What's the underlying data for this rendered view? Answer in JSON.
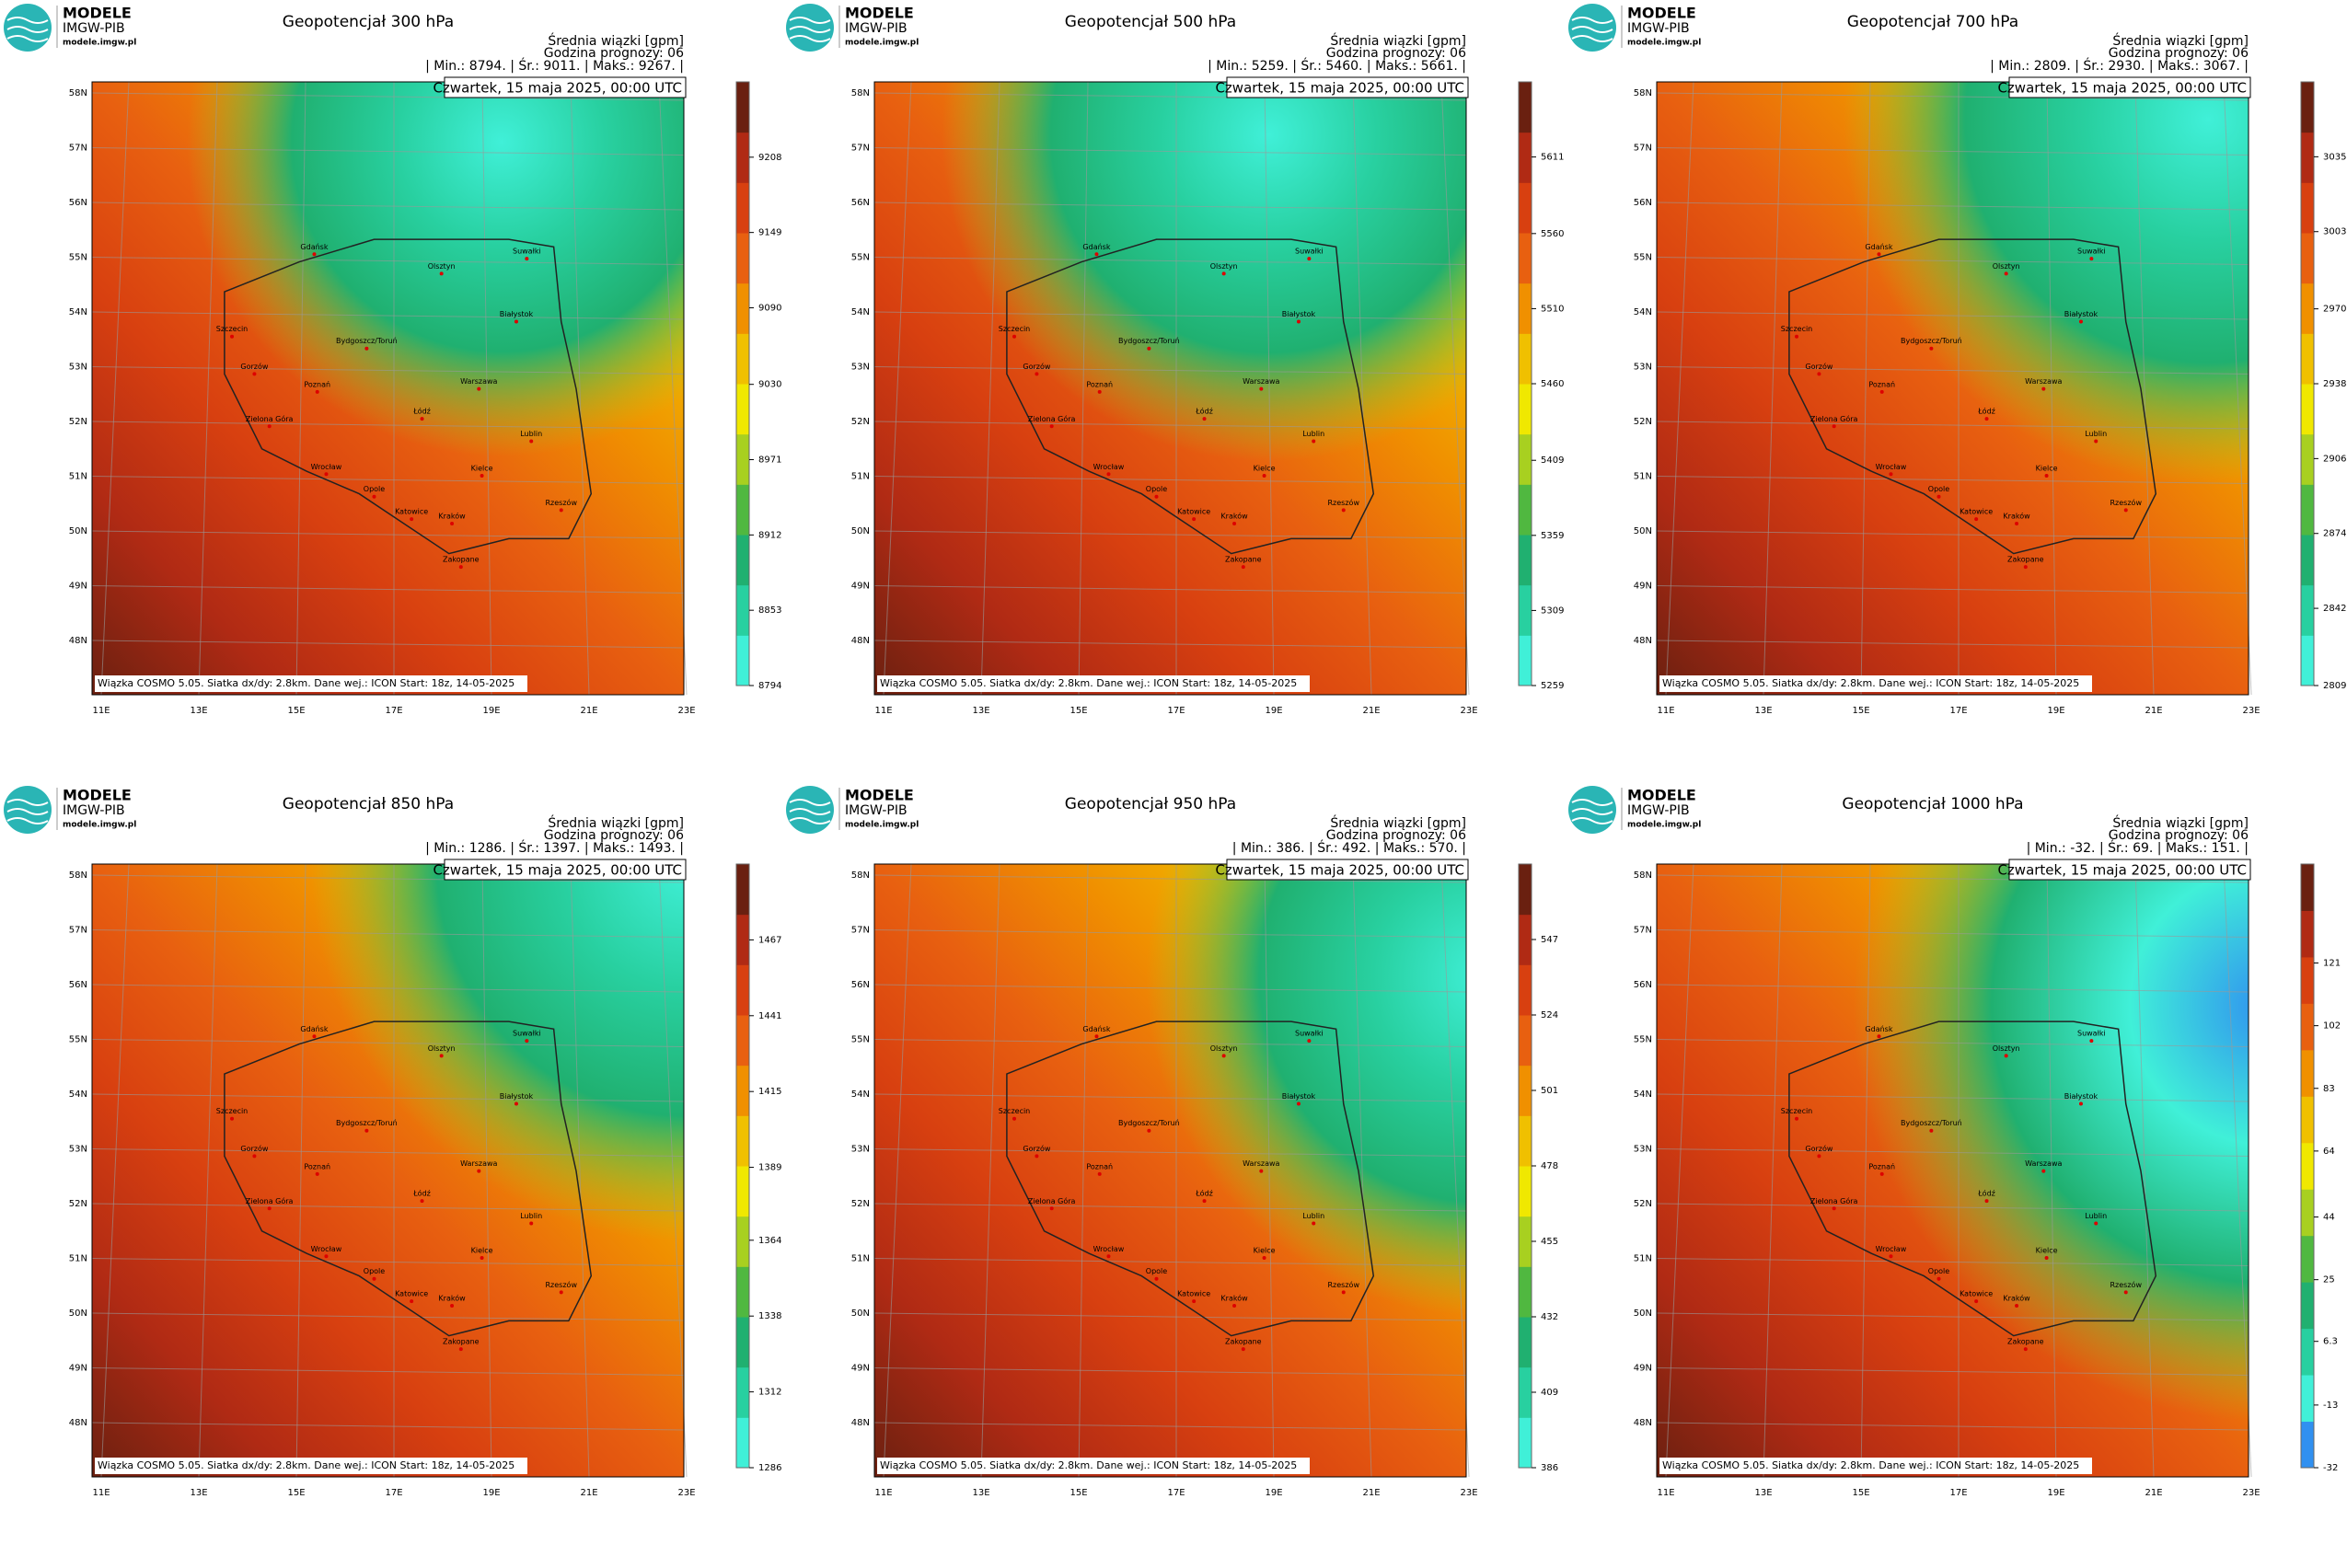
{
  "brand": {
    "name": "MODELE",
    "org": "IMGW-PIB",
    "url": "modele.imgw.pl"
  },
  "legend_title": "Średnia wiązki [gpm]",
  "forecast_hour": "Godzina prognozy: 06",
  "date": "Czwartek, 15 maja 2025, 00:00 UTC",
  "footer": "Wiązka  COSMO 5.05. Siatka dx/dy: 2.8km. Dane wej.: ICON Start: 18z, 14-05-2025",
  "lat_labels": [
    "58N",
    "57N",
    "56N",
    "55N",
    "54N",
    "53N",
    "52N",
    "51N",
    "50N",
    "49N",
    "48N"
  ],
  "lon_labels": [
    "11E",
    "13E",
    "15E",
    "17E",
    "19E",
    "21E",
    "23E"
  ],
  "cities": [
    "Gdańsk",
    "Olsztyn",
    "Suwałki",
    "Białystok",
    "Szczecin",
    "Bydgoszcz/Toruń",
    "Gorzów",
    "Poznań",
    "Warszawa",
    "Zielona Góra",
    "Łódź",
    "Lublin",
    "Wrocław",
    "Kielce",
    "Opole",
    "Rzeszów",
    "Katowice",
    "Kraków",
    "Zakopane"
  ],
  "colorscale": [
    "#40f0d8",
    "#28d0a0",
    "#20b070",
    "#50b840",
    "#a8d020",
    "#f0e800",
    "#f0c000",
    "#f09000",
    "#e86010",
    "#d84010",
    "#b02a14",
    "#6a2010"
  ],
  "panels": [
    {
      "title": "Geopotencjał 300 hPa",
      "stats": "| Min.:   8794. | Śr.:   9011. | Maks.:   9267. |",
      "cbar_lim": [
        8794,
        9267
      ],
      "cbar_ticks": [
        8794,
        8853,
        8912,
        8971,
        9030,
        9090,
        9149,
        9208
      ]
    },
    {
      "title": "Geopotencjał 500 hPa",
      "stats": "| Min.:   5259. | Śr.:   5460. | Maks.:   5661. |",
      "cbar_lim": [
        5259,
        5661
      ],
      "cbar_ticks": [
        5259,
        5309,
        5359,
        5409,
        5460,
        5510,
        5560,
        5611
      ]
    },
    {
      "title": "Geopotencjał 700 hPa",
      "stats": "| Min.:   2809. | Śr.:   2930. | Maks.:   3067. |",
      "cbar_lim": [
        2809,
        3067
      ],
      "cbar_ticks": [
        2809,
        2842,
        2874,
        2906,
        2938,
        2970,
        3003,
        3035
      ]
    },
    {
      "title": "Geopotencjał 850 hPa",
      "stats": "| Min.:   1286. | Śr.:   1397. | Maks.:   1493. |",
      "cbar_lim": [
        1286,
        1493
      ],
      "cbar_ticks": [
        1286,
        1312,
        1338,
        1364,
        1389,
        1415,
        1441,
        1467
      ]
    },
    {
      "title": "Geopotencjał 950 hPa",
      "stats": "| Min.:   386. | Śr.:   492. | Maks.:   570. |",
      "cbar_lim": [
        386,
        570
      ],
      "cbar_ticks": [
        386,
        409,
        432,
        455,
        478,
        501,
        524,
        547
      ]
    },
    {
      "title": "Geopotencjał 1000 hPa",
      "stats": "| Min.:   -32. | Śr.:   69. | Maks.:   151. |",
      "cbar_lim": [
        -32,
        151
      ],
      "cbar_ticks": [
        -32,
        -13,
        6.3,
        25,
        44,
        64,
        83,
        102,
        121
      ],
      "low_color": "#3090f0"
    }
  ]
}
